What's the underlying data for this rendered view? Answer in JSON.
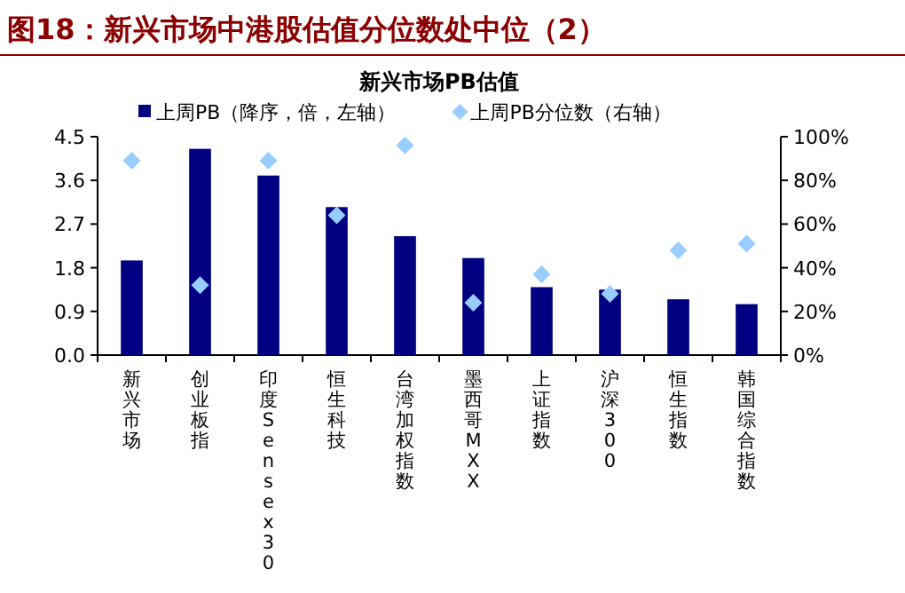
{
  "chart_data": {
    "type": "bar",
    "title": "图18：新兴市场中港股估值分位数处中位（2）",
    "subtitle": "新兴市场PB估值",
    "categories": [
      "新兴市场",
      "创业板指",
      "印度Sensex30",
      "恒生科技",
      "台湾加权指数",
      "墨西哥MXX",
      "上证指数",
      "沪深300",
      "恒生指数",
      "韩国综合指数"
    ],
    "series": [
      {
        "name": "上周PB（降序，倍，左轴）",
        "color": "#000080",
        "values": [
          1.95,
          4.25,
          3.7,
          3.05,
          2.45,
          2.0,
          1.4,
          1.35,
          1.15,
          1.05
        ]
      },
      {
        "name": "上周PB分位数（右轴）",
        "type": "scatter",
        "axis": "y2",
        "marker": "diamond",
        "color": "#99ccff",
        "values": [
          89,
          32,
          89,
          64,
          96,
          24,
          37,
          28,
          48,
          51
        ]
      }
    ],
    "ylim": [
      0,
      4.5
    ],
    "yticks": [
      {
        "value": 0,
        "label": "0.0"
      },
      {
        "value": 0.9,
        "label": "0.9"
      },
      {
        "value": 1.8,
        "label": "1.8"
      },
      {
        "value": 2.7,
        "label": "2.7"
      },
      {
        "value": 3.6,
        "label": "3.6"
      },
      {
        "value": 4.5,
        "label": "4.5"
      }
    ],
    "y2lim": [
      0,
      100
    ],
    "y2ticks": [
      {
        "value": 0,
        "label": "0%"
      },
      {
        "value": 20,
        "label": "20%"
      },
      {
        "value": 40,
        "label": "40%"
      },
      {
        "value": 60,
        "label": "60%"
      },
      {
        "value": 80,
        "label": "80%"
      },
      {
        "value": 100,
        "label": "100%"
      }
    ],
    "legend": "top"
  }
}
